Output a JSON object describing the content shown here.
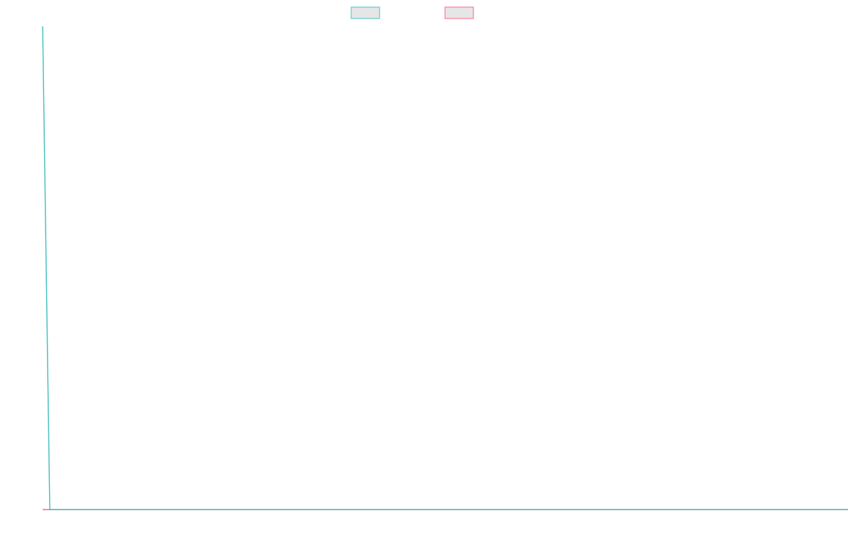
{
  "chart_data": {
    "type": "line",
    "x": [
      0,
      1,
      113
    ],
    "xlim": [
      0,
      113
    ],
    "ylim": [
      0,
      1
    ],
    "series": [
      {
        "color": "#4bc0c0",
        "values": [
          1,
          0,
          0
        ]
      },
      {
        "color": "#ff6384",
        "values": [
          0,
          0,
          0
        ]
      }
    ],
    "legend": "top"
  }
}
